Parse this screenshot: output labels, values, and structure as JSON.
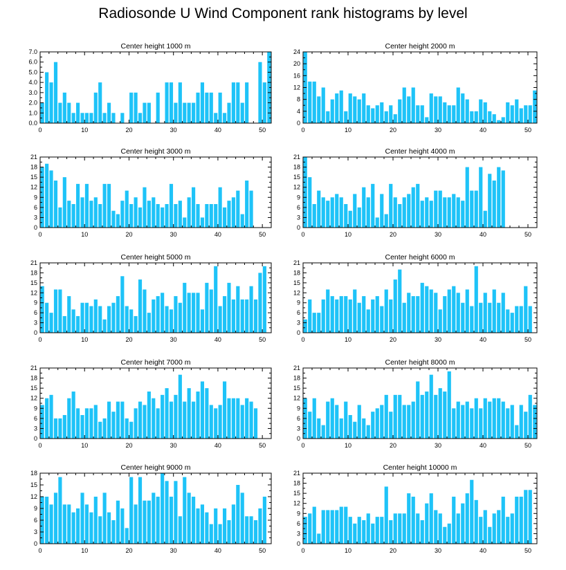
{
  "title": "Radiosonde U Wind Component rank histograms by level",
  "colors": {
    "bar": "#1ec3f8",
    "axis": "#000000"
  },
  "chart_data": [
    {
      "type": "bar",
      "title": "Center height 1000 m",
      "ylim": [
        0,
        7
      ],
      "yticks": [
        "0.0",
        "1.0",
        "2.0",
        "3.0",
        "4.0",
        "5.0",
        "6.0",
        "7.0"
      ],
      "ytick_values": [
        0,
        1,
        2,
        3,
        4,
        5,
        6,
        7
      ],
      "xlim": [
        0,
        52
      ],
      "xticks": [
        0,
        10,
        20,
        30,
        40,
        50
      ],
      "values": [
        2,
        5,
        4,
        6,
        2,
        3,
        2,
        1,
        2,
        1,
        1,
        1,
        3,
        4,
        1,
        2,
        1,
        0,
        1,
        0,
        3,
        3,
        1,
        2,
        2,
        0,
        3,
        0,
        4,
        4,
        2,
        4,
        2,
        2,
        2,
        3,
        4,
        3,
        3,
        1,
        3,
        1,
        2,
        4,
        4,
        2,
        4,
        0,
        0,
        6,
        4,
        7
      ]
    },
    {
      "type": "bar",
      "title": "Center height 2000 m",
      "ylim": [
        0,
        24
      ],
      "yticks": [
        "0",
        "4",
        "8",
        "12",
        "16",
        "20",
        "24"
      ],
      "ytick_values": [
        0,
        4,
        8,
        12,
        16,
        20,
        24
      ],
      "xlim": [
        0,
        52
      ],
      "xticks": [
        0,
        10,
        20,
        30,
        40,
        50
      ],
      "values": [
        24,
        14,
        14,
        9,
        12,
        4,
        8,
        10,
        11,
        4,
        10,
        9,
        8,
        10,
        6,
        5,
        6,
        7,
        4,
        6,
        3,
        8,
        12,
        9,
        12,
        6,
        6,
        2,
        10,
        9,
        9,
        7,
        6,
        6,
        12,
        10,
        8,
        4,
        4,
        8,
        7,
        4,
        3,
        1,
        2,
        7,
        6,
        8,
        5,
        6,
        6,
        11
      ]
    },
    {
      "type": "bar",
      "title": "Center height 3000 m",
      "ylim": [
        0,
        21
      ],
      "yticks": [
        "0",
        "3",
        "6",
        "9",
        "12",
        "15",
        "18",
        "21"
      ],
      "ytick_values": [
        0,
        3,
        6,
        9,
        12,
        15,
        18,
        21
      ],
      "xlim": [
        0,
        52
      ],
      "xticks": [
        0,
        10,
        20,
        30,
        40,
        50
      ],
      "values": [
        18,
        19,
        17,
        14,
        6,
        15,
        8,
        7,
        13,
        9,
        13,
        8,
        9,
        7,
        13,
        13,
        5,
        4,
        8,
        11,
        7,
        9,
        6,
        12,
        8,
        9,
        7,
        6,
        7,
        13,
        7,
        8,
        3,
        9,
        12,
        7,
        3,
        7,
        7,
        7,
        12,
        6,
        8,
        9,
        11,
        4,
        14,
        11,
        0,
        0,
        0,
        0
      ]
    },
    {
      "type": "bar",
      "title": "Center height 4000 m",
      "ylim": [
        0,
        21
      ],
      "yticks": [
        "0",
        "3",
        "6",
        "9",
        "12",
        "15",
        "18",
        "21"
      ],
      "ytick_values": [
        0,
        3,
        6,
        9,
        12,
        15,
        18,
        21
      ],
      "xlim": [
        0,
        52
      ],
      "xticks": [
        0,
        10,
        20,
        30,
        40,
        50
      ],
      "values": [
        21,
        15,
        7,
        11,
        9,
        8,
        9,
        10,
        9,
        7,
        5,
        10,
        6,
        12,
        9,
        13,
        3,
        10,
        4,
        13,
        9,
        7,
        9,
        10,
        12,
        13,
        8,
        9,
        8,
        11,
        11,
        9,
        9,
        10,
        9,
        8,
        18,
        11,
        11,
        18,
        5,
        16,
        14,
        18,
        17,
        0,
        0,
        0,
        0,
        0,
        0,
        0
      ]
    },
    {
      "type": "bar",
      "title": "Center height 5000 m",
      "ylim": [
        0,
        21
      ],
      "yticks": [
        "0",
        "3",
        "6",
        "9",
        "12",
        "15",
        "18",
        "21"
      ],
      "ytick_values": [
        0,
        3,
        6,
        9,
        12,
        15,
        18,
        21
      ],
      "xlim": [
        0,
        52
      ],
      "xticks": [
        0,
        10,
        20,
        30,
        40,
        50
      ],
      "values": [
        14,
        9,
        6,
        13,
        13,
        5,
        11,
        7,
        5,
        9,
        9,
        8,
        10,
        8,
        4,
        8,
        9,
        11,
        17,
        8,
        7,
        5,
        16,
        13,
        6,
        10,
        11,
        12,
        8,
        7,
        11,
        9,
        15,
        12,
        12,
        12,
        7,
        15,
        13,
        20,
        8,
        11,
        15,
        10,
        14,
        10,
        10,
        14,
        10,
        18,
        20,
        0
      ]
    },
    {
      "type": "bar",
      "title": "Center height 6000 m",
      "ylim": [
        0,
        21
      ],
      "yticks": [
        "0",
        "3",
        "6",
        "9",
        "12",
        "15",
        "18",
        "21"
      ],
      "ytick_values": [
        0,
        3,
        6,
        9,
        12,
        15,
        18,
        21
      ],
      "xlim": [
        0,
        52
      ],
      "xticks": [
        0,
        10,
        20,
        30,
        40,
        50
      ],
      "values": [
        4,
        10,
        6,
        6,
        10,
        13,
        11,
        10,
        11,
        11,
        10,
        13,
        9,
        11,
        7,
        10,
        11,
        8,
        13,
        10,
        16,
        19,
        9,
        12,
        11,
        11,
        15,
        14,
        13,
        12,
        7,
        11,
        13,
        14,
        12,
        9,
        13,
        8,
        20,
        9,
        12,
        9,
        13,
        9,
        12,
        7,
        6,
        8,
        8,
        14,
        8,
        0
      ]
    },
    {
      "type": "bar",
      "title": "Center height 7000 m",
      "ylim": [
        0,
        21
      ],
      "yticks": [
        "0",
        "3",
        "6",
        "9",
        "12",
        "15",
        "18",
        "21"
      ],
      "ytick_values": [
        0,
        3,
        6,
        9,
        12,
        15,
        18,
        21
      ],
      "xlim": [
        0,
        52
      ],
      "xticks": [
        0,
        10,
        20,
        30,
        40,
        50
      ],
      "values": [
        10,
        12,
        13,
        6,
        6,
        7,
        12,
        14,
        9,
        7,
        9,
        9,
        10,
        5,
        6,
        11,
        8,
        11,
        11,
        6,
        5,
        9,
        11,
        10,
        14,
        12,
        9,
        13,
        15,
        11,
        13,
        19,
        11,
        15,
        11,
        14,
        17,
        15,
        10,
        9,
        10,
        17,
        12,
        12,
        12,
        10,
        12,
        11,
        9,
        0,
        0,
        0
      ]
    },
    {
      "type": "bar",
      "title": "Center height 8000 m",
      "ylim": [
        0,
        21
      ],
      "yticks": [
        "0",
        "3",
        "6",
        "9",
        "12",
        "15",
        "18",
        "21"
      ],
      "ytick_values": [
        0,
        3,
        6,
        9,
        12,
        15,
        18,
        21
      ],
      "xlim": [
        0,
        52
      ],
      "xticks": [
        0,
        10,
        20,
        30,
        40,
        50
      ],
      "values": [
        12,
        8,
        12,
        6,
        4,
        11,
        12,
        10,
        6,
        11,
        7,
        5,
        10,
        6,
        4,
        8,
        9,
        10,
        13,
        8,
        13,
        13,
        10,
        10,
        11,
        17,
        13,
        14,
        19,
        13,
        15,
        14,
        20,
        9,
        11,
        10,
        11,
        9,
        12,
        9,
        12,
        11,
        12,
        12,
        11,
        9,
        10,
        4,
        10,
        8,
        13,
        10
      ]
    },
    {
      "type": "bar",
      "title": "Center height 9000 m",
      "ylim": [
        0,
        18
      ],
      "yticks": [
        "0",
        "3",
        "6",
        "9",
        "12",
        "15",
        "18"
      ],
      "ytick_values": [
        0,
        3,
        6,
        9,
        12,
        15,
        18
      ],
      "xlim": [
        0,
        52
      ],
      "xticks": [
        0,
        10,
        20,
        30,
        40,
        50
      ],
      "values": [
        12,
        12,
        10,
        13,
        17,
        10,
        10,
        8,
        9,
        13,
        10,
        8,
        12,
        7,
        13,
        8,
        6,
        11,
        9,
        4,
        17,
        10,
        17,
        11,
        11,
        13,
        12,
        18,
        16,
        12,
        16,
        7,
        17,
        13,
        12,
        9,
        10,
        8,
        5,
        9,
        5,
        9,
        6,
        10,
        15,
        13,
        7,
        7,
        6,
        9,
        12,
        0
      ]
    },
    {
      "type": "bar",
      "title": "Center height 10000 m",
      "ylim": [
        0,
        21
      ],
      "yticks": [
        "0",
        "3",
        "6",
        "9",
        "12",
        "15",
        "18",
        "21"
      ],
      "ytick_values": [
        0,
        3,
        6,
        9,
        12,
        15,
        18,
        21
      ],
      "xlim": [
        0,
        52
      ],
      "xticks": [
        0,
        10,
        20,
        30,
        40,
        50
      ],
      "values": [
        8,
        9,
        11,
        3,
        10,
        10,
        10,
        10,
        11,
        11,
        8,
        6,
        8,
        7,
        9,
        6,
        8,
        8,
        17,
        7,
        9,
        9,
        9,
        15,
        14,
        9,
        7,
        12,
        15,
        10,
        9,
        5,
        6,
        14,
        9,
        12,
        15,
        19,
        13,
        8,
        10,
        5,
        9,
        10,
        14,
        8,
        9,
        14,
        14,
        16,
        16,
        0
      ]
    }
  ]
}
